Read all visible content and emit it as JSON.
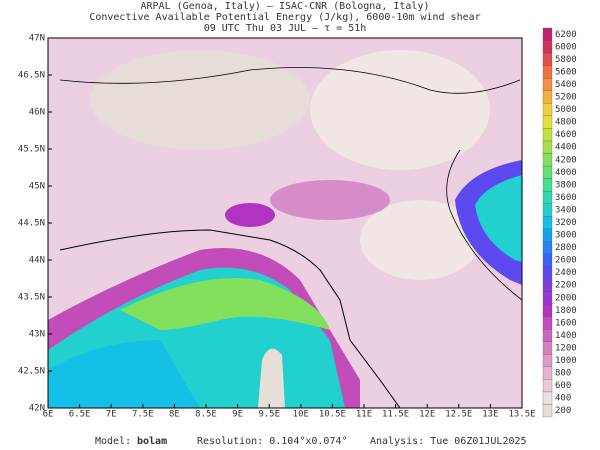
{
  "header": {
    "line1": "ARPAL (Genoa, Italy)  —  ISAC-CNR (Bologna, Italy)",
    "line2": "Convective Available Potential Energy (J/kg), 6000-10m wind shear",
    "line3": "09 UTC Thu 03 JUL  –  τ = 51h"
  },
  "axes": {
    "x_labels": [
      "6E",
      "6.5E",
      "7E",
      "7.5E",
      "8E",
      "8.5E",
      "9E",
      "9.5E",
      "10E",
      "10.5E",
      "11E",
      "11.5E",
      "12E",
      "12.5E",
      "13E",
      "13.5E"
    ],
    "y_labels": [
      "47N",
      "46.5N",
      "46N",
      "45.5N",
      "45N",
      "44.5N",
      "44N",
      "43.5N",
      "43N",
      "42.5N",
      "42N"
    ]
  },
  "colorbar": {
    "levels": [
      200,
      400,
      600,
      800,
      1000,
      1200,
      1400,
      1600,
      1800,
      2000,
      2200,
      2400,
      2600,
      2800,
      3000,
      3200,
      3400,
      3600,
      3800,
      4000,
      4200,
      4400,
      4600,
      4800,
      5000,
      5200,
      5400,
      5600,
      5800,
      6000,
      6200
    ],
    "colors": [
      "#e6ded8",
      "#f0dde6",
      "#ecc8dc",
      "#e6b2d4",
      "#de9acb",
      "#d680c2",
      "#cc66bc",
      "#c24cb8",
      "#b034c0",
      "#9a36d0",
      "#7c40e0",
      "#5c4af0",
      "#3c62f8",
      "#2282f6",
      "#12a2ee",
      "#14c0e6",
      "#22d0d0",
      "#30d8b0",
      "#42e090",
      "#62e070",
      "#82e05c",
      "#a2e04c",
      "#c2e040",
      "#e0e040",
      "#f0d040",
      "#f0b040",
      "#f09040",
      "#f07040",
      "#e05050",
      "#d03060",
      "#c02070"
    ]
  },
  "footer": {
    "model_label": "Model:",
    "model": "bolam",
    "resolution": "Resolution: 0.104°x0.074°",
    "analysis": "Analysis: Tue 06Z01JUL2025"
  }
}
